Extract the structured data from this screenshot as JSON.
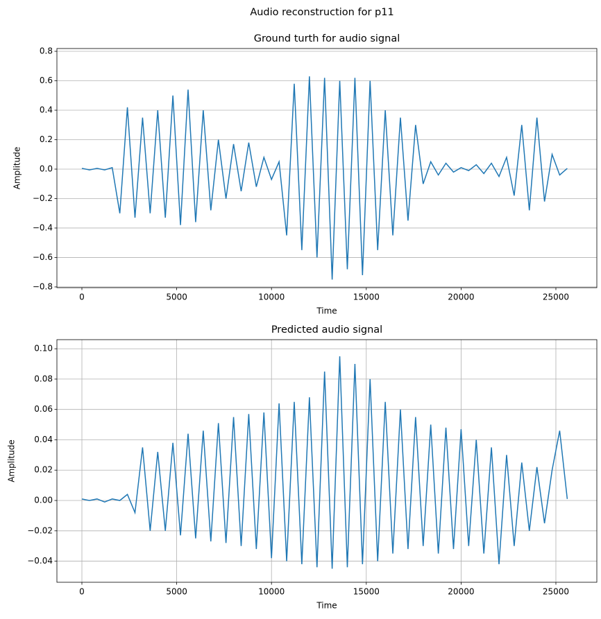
{
  "title": "Audio reconstruction for p11",
  "chart_data": [
    {
      "type": "line",
      "title": "Ground turth for audio signal",
      "x_label": "Time",
      "y_label": "Amplitude",
      "color": "#1f77b4",
      "grid": "y",
      "xlim": [
        -1318,
        27160
      ],
      "ylim": [
        -0.805,
        0.819
      ],
      "xticks": [
        0,
        5000,
        10000,
        15000,
        20000,
        25000
      ],
      "yticks": [
        {
          "value": -0.8,
          "label": "−0.8"
        },
        {
          "value": -0.6,
          "label": "−0.6"
        },
        {
          "value": -0.4,
          "label": "−0.4"
        },
        {
          "value": -0.2,
          "label": "−0.2"
        },
        {
          "value": 0,
          "label": "0.0"
        },
        0.2,
        0.4,
        0.6,
        0.8
      ],
      "x": [
        0,
        400,
        800,
        1200,
        1600,
        2000,
        2400,
        2800,
        3200,
        3600,
        4000,
        4400,
        4800,
        5200,
        5600,
        6000,
        6400,
        6800,
        7200,
        7600,
        8000,
        8400,
        8800,
        9200,
        9600,
        10000,
        10400,
        10800,
        11200,
        11600,
        12000,
        12400,
        12800,
        13200,
        13600,
        14000,
        14400,
        14800,
        15200,
        15600,
        16000,
        16400,
        16800,
        17200,
        17600,
        18000,
        18400,
        18800,
        19200,
        19600,
        20000,
        20400,
        20800,
        21200,
        21600,
        22000,
        22400,
        22800,
        23200,
        23600,
        24000,
        24400,
        24800,
        25200,
        25600
      ],
      "values": [
        0.005,
        -0.005,
        0.005,
        -0.005,
        0.01,
        -0.3,
        0.42,
        -0.33,
        0.35,
        -0.3,
        0.4,
        -0.33,
        0.5,
        -0.38,
        0.54,
        -0.36,
        0.4,
        -0.28,
        0.2,
        -0.2,
        0.17,
        -0.15,
        0.18,
        -0.12,
        0.08,
        -0.07,
        0.05,
        -0.45,
        0.58,
        -0.55,
        0.63,
        -0.6,
        0.62,
        -0.75,
        0.6,
        -0.68,
        0.62,
        -0.72,
        0.6,
        -0.55,
        0.4,
        -0.45,
        0.35,
        -0.35,
        0.3,
        -0.1,
        0.05,
        -0.04,
        0.04,
        -0.02,
        0.01,
        -0.01,
        0.03,
        -0.03,
        0.04,
        -0.05,
        0.08,
        -0.18,
        0.3,
        -0.28,
        0.35,
        -0.22,
        0.1,
        -0.04,
        0.005
      ]
    },
    {
      "type": "line",
      "title": "Predicted audio signal",
      "x_label": "Time",
      "y_label": "Amplitude",
      "color": "#1f77b4",
      "grid": "both",
      "xlim": [
        -1318,
        27160
      ],
      "ylim": [
        -0.0539,
        0.106
      ],
      "xticks": [
        0,
        5000,
        10000,
        15000,
        20000,
        25000
      ],
      "yticks": [
        {
          "value": -0.04,
          "label": "−0.04"
        },
        {
          "value": -0.02,
          "label": "−0.02"
        },
        {
          "value": 0,
          "label": "0.00"
        },
        0.02,
        0.04,
        0.06,
        0.08,
        {
          "value": 0.1,
          "label": "0.10"
        }
      ],
      "x": [
        0,
        400,
        800,
        1200,
        1600,
        2000,
        2400,
        2800,
        3200,
        3600,
        4000,
        4400,
        4800,
        5200,
        5600,
        6000,
        6400,
        6800,
        7200,
        7600,
        8000,
        8400,
        8800,
        9200,
        9600,
        10000,
        10400,
        10800,
        11200,
        11600,
        12000,
        12400,
        12800,
        13200,
        13600,
        14000,
        14400,
        14800,
        15200,
        15600,
        16000,
        16400,
        16800,
        17200,
        17600,
        18000,
        18400,
        18800,
        19200,
        19600,
        20000,
        20400,
        20800,
        21200,
        21600,
        22000,
        22400,
        22800,
        23200,
        23600,
        24000,
        24400,
        24800,
        25200,
        25600
      ],
      "values": [
        0.001,
        0,
        0.001,
        -0.001,
        0.001,
        0,
        0.004,
        -0.008,
        0.035,
        -0.02,
        0.032,
        -0.02,
        0.038,
        -0.023,
        0.044,
        -0.025,
        0.046,
        -0.027,
        0.051,
        -0.028,
        0.055,
        -0.03,
        0.057,
        -0.032,
        0.058,
        -0.038,
        0.064,
        -0.04,
        0.065,
        -0.042,
        0.068,
        -0.044,
        0.085,
        -0.045,
        0.095,
        -0.044,
        0.09,
        -0.042,
        0.08,
        -0.04,
        0.065,
        -0.035,
        0.06,
        -0.032,
        0.055,
        -0.03,
        0.05,
        -0.035,
        0.048,
        -0.032,
        0.047,
        -0.03,
        0.04,
        -0.035,
        0.035,
        -0.042,
        0.03,
        -0.03,
        0.025,
        -0.02,
        0.022,
        -0.015,
        0.02,
        0.046,
        0.001
      ]
    }
  ]
}
